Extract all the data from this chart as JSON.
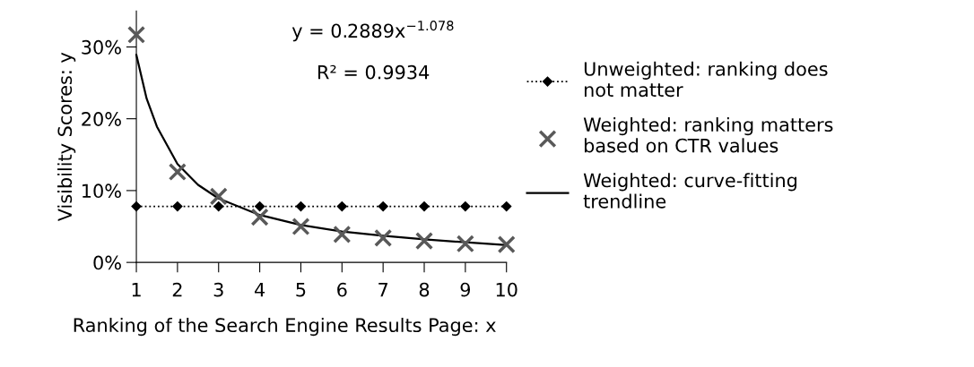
{
  "chart_data": {
    "type": "scatter",
    "xlabel": "Ranking of the Search Engine Results Page: x",
    "ylabel": "Visibility Scores: y",
    "xlim": [
      1,
      10
    ],
    "xticks": [
      1,
      2,
      3,
      4,
      5,
      6,
      7,
      8,
      9,
      10
    ],
    "ylim": [
      0,
      35
    ],
    "yticks": [
      {
        "value": 0,
        "label": "0%"
      },
      {
        "value": 10,
        "label": "10%"
      },
      {
        "value": 20,
        "label": "20%"
      },
      {
        "value": 30,
        "label": "30%"
      }
    ],
    "grid": false,
    "legend": "right",
    "annotations": [
      "y = 0.2889x$^{−1.078}$",
      "R² = 0.9934"
    ],
    "series": [
      {
        "name": "Unweighted: ranking does not matter",
        "type": "line",
        "color": "#000000",
        "marker": "diamond",
        "line_style": "dotted",
        "x": [
          1,
          2,
          3,
          4,
          5,
          6,
          7,
          8,
          9,
          10
        ],
        "values": [
          7.8,
          7.8,
          7.8,
          7.8,
          7.8,
          7.8,
          7.8,
          7.8,
          7.8,
          7.8
        ]
      },
      {
        "name": "Weighted: ranking matters based on CTR values",
        "color": "#595959",
        "marker": "cross",
        "x": [
          1,
          2,
          3,
          4,
          5,
          6,
          7,
          8,
          9,
          10
        ],
        "values": [
          31.7,
          12.6,
          9.2,
          6.3,
          5.0,
          3.9,
          3.4,
          3.0,
          2.6,
          2.5
        ]
      },
      {
        "name": "Weighted: curve-fitting trendline",
        "type": "line",
        "color": "#000000",
        "marker": "none",
        "line_style": "solid",
        "x": [
          1,
          1.25,
          1.5,
          2,
          2.5,
          3,
          4,
          5,
          6,
          7,
          8,
          9,
          10
        ],
        "values": [
          28.9,
          22.8,
          18.9,
          13.7,
          10.8,
          8.9,
          6.6,
          5.2,
          4.3,
          3.7,
          3.2,
          2.8,
          2.4
        ]
      }
    ]
  }
}
